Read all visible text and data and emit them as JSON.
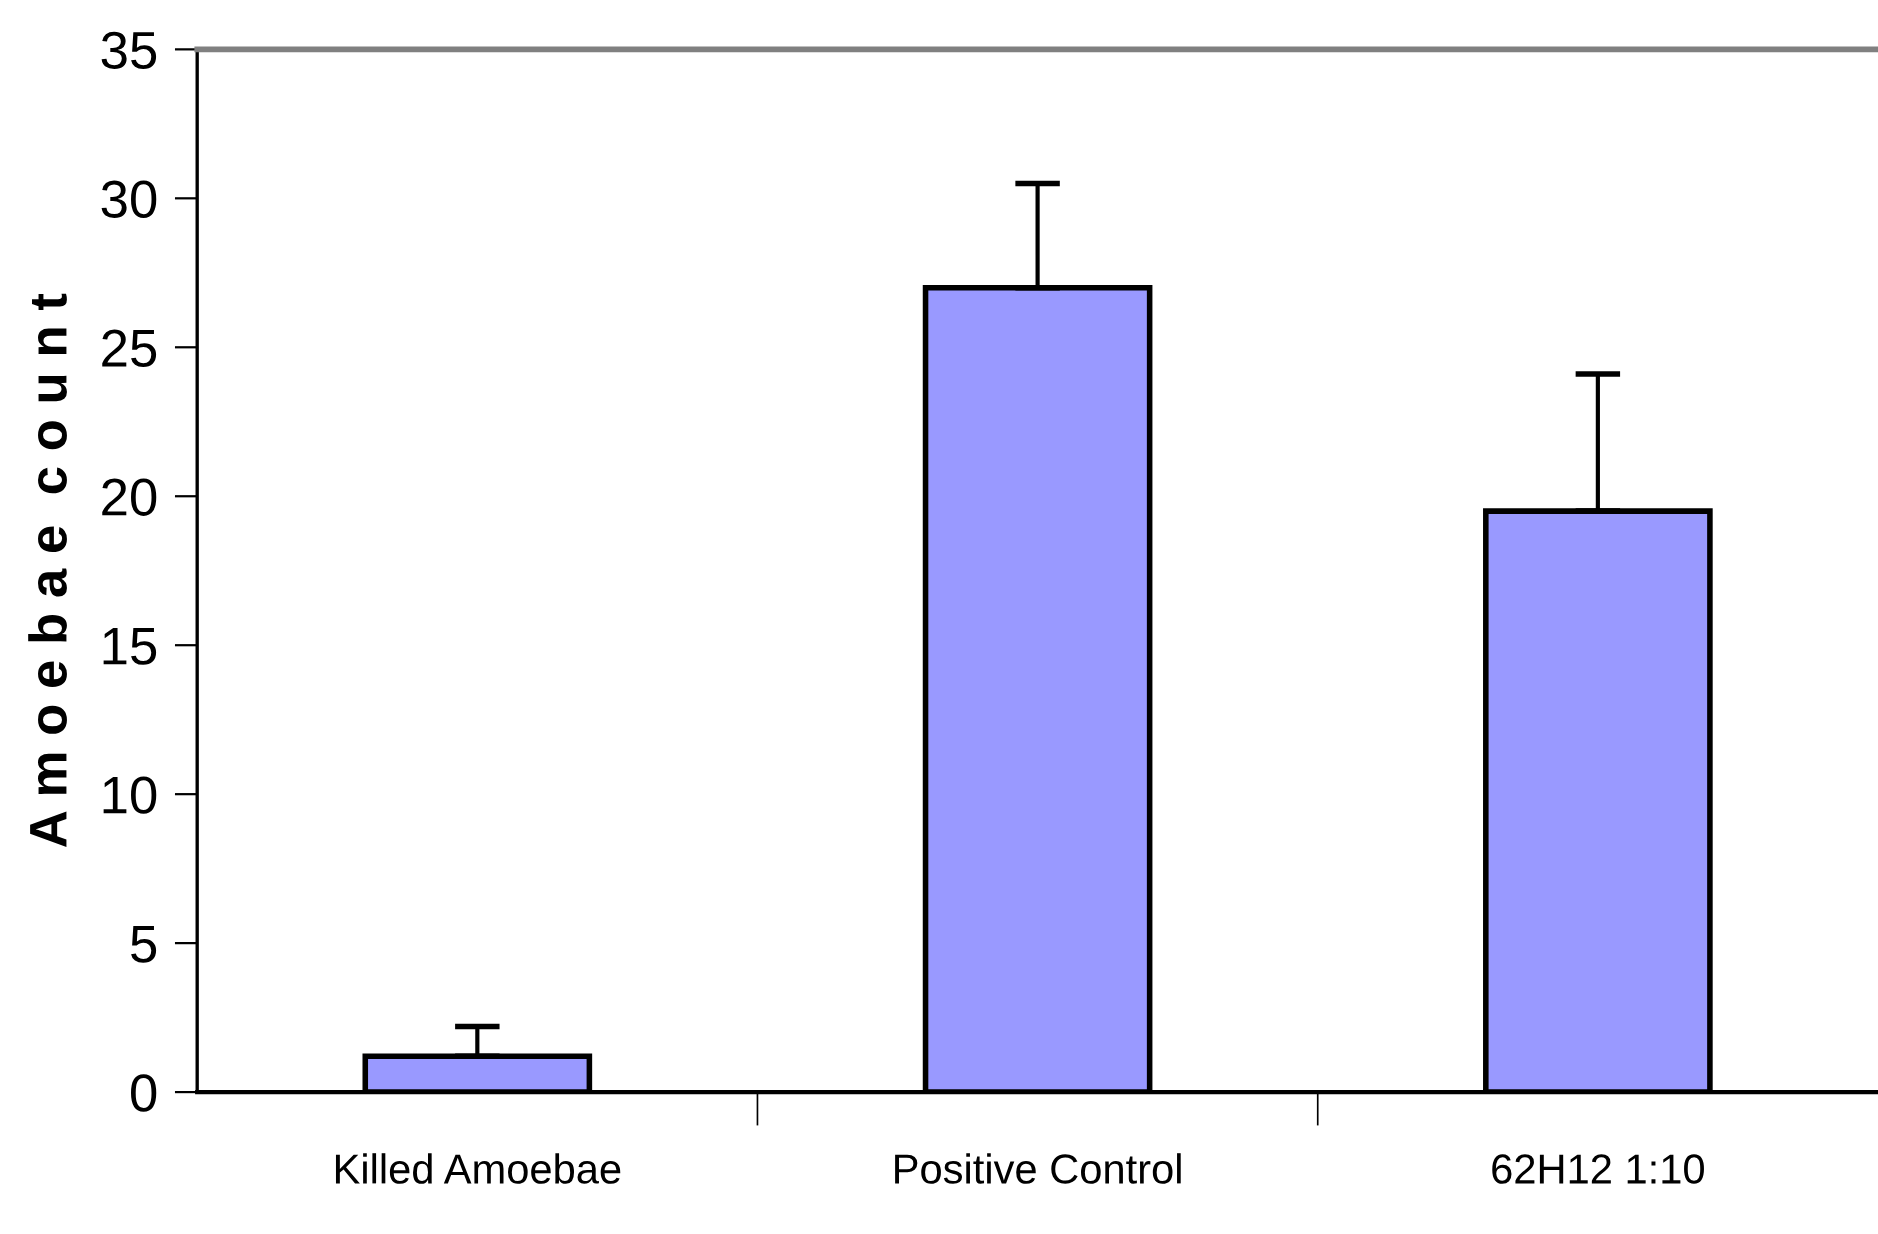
{
  "chart_data": {
    "type": "bar",
    "ylabel": "A m o e b a e  c o u n t",
    "categories": [
      "Killed Amoebae",
      "Positive Control",
      "62H12 1:10"
    ],
    "values": [
      1.2,
      27,
      19.5
    ],
    "color": "#9999ff",
    "errors": [
      [
        1.2,
        2.2
      ],
      [
        27,
        30.5
      ],
      [
        19.5,
        24.1
      ]
    ],
    "ylim": [
      0,
      35
    ],
    "yticks": [
      0,
      5,
      10,
      15,
      20,
      25,
      30,
      35
    ],
    "grid": false
  }
}
